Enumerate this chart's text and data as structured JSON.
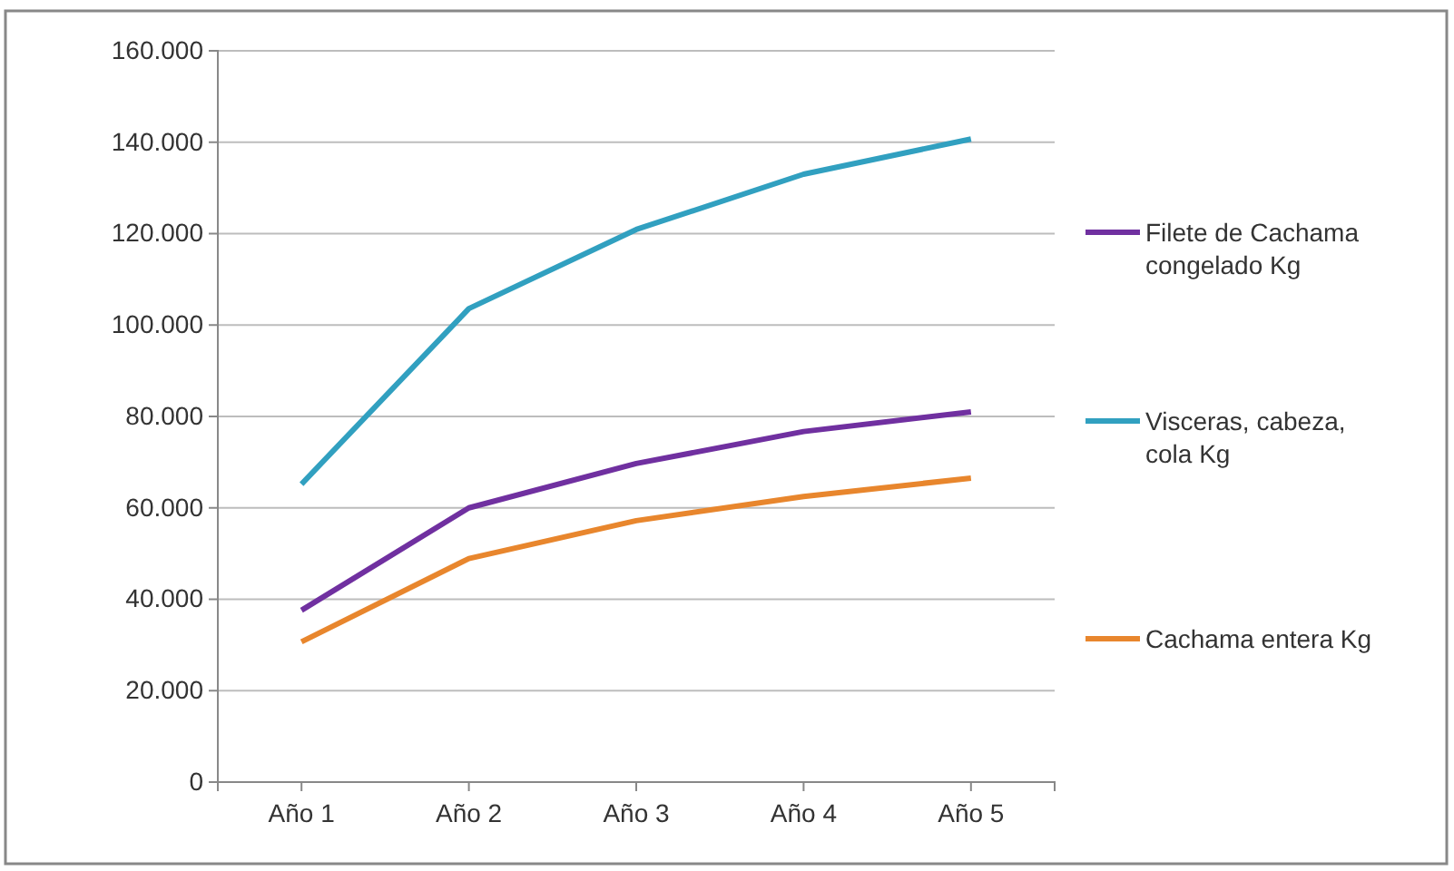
{
  "chart_data": {
    "type": "line",
    "categories": [
      "Año 1",
      "Año 2",
      "Año 3",
      "Año 4",
      "Año 5"
    ],
    "series": [
      {
        "name": "Filete de Cachama congelado Kg",
        "color": "#7030a0",
        "values": [
          37600,
          60000,
          69700,
          76700,
          81000
        ]
      },
      {
        "name": "Visceras, cabeza, cola Kg",
        "color": "#31a0c0",
        "values": [
          65200,
          103600,
          120900,
          133000,
          140700
        ]
      },
      {
        "name": "Cachama entera Kg",
        "color": "#e8862d",
        "values": [
          30700,
          48900,
          57200,
          62500,
          66500
        ]
      }
    ],
    "ylim": [
      0,
      160000
    ],
    "yticks": [
      {
        "value": 0,
        "label": "0"
      },
      {
        "value": 20000,
        "label": "20.000"
      },
      {
        "value": 40000,
        "label": "40.000"
      },
      {
        "value": 60000,
        "label": "60.000"
      },
      {
        "value": 80000,
        "label": "80.000"
      },
      {
        "value": 100000,
        "label": "100.000"
      },
      {
        "value": 120000,
        "label": "120.000"
      },
      {
        "value": 140000,
        "label": "140.000"
      },
      {
        "value": 160000,
        "label": "160.000"
      }
    ],
    "grid": "y",
    "legend": "right",
    "marker": "none",
    "line_style": "solid"
  }
}
